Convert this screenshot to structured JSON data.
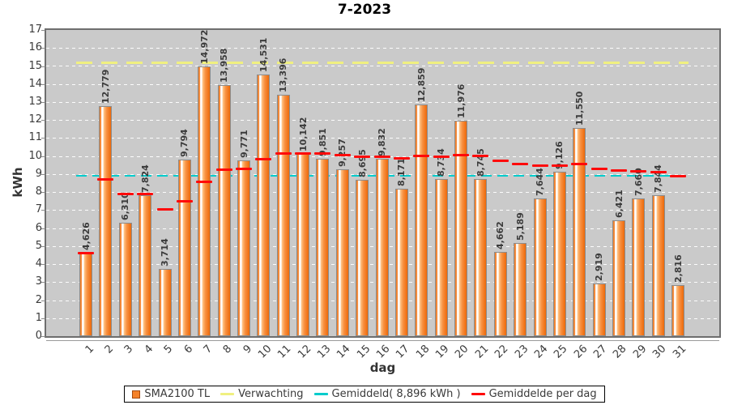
{
  "title": "7-2023",
  "axes": {
    "y_label": "kWh",
    "x_label": "dag",
    "y_ticks": [
      0,
      1,
      2,
      3,
      4,
      5,
      6,
      7,
      8,
      9,
      10,
      11,
      12,
      13,
      14,
      15,
      16,
      17
    ],
    "x_ticks": [
      "1",
      "2",
      "3",
      "4",
      "5",
      "6",
      "7",
      "8",
      "9",
      "10",
      "11",
      "12",
      "13",
      "14",
      "15",
      "16",
      "17",
      "18",
      "19",
      "20",
      "21",
      "22",
      "23",
      "24",
      "25",
      "26",
      "27",
      "28",
      "29",
      "30",
      "31"
    ]
  },
  "legend": [
    {
      "label": "SMA2100 TL",
      "swatch": "bar",
      "color": "#f5822a"
    },
    {
      "label": "Verwachting",
      "swatch": "line",
      "color": "#f0f080"
    },
    {
      "label": "Gemiddeld( 8,896 kWh )",
      "swatch": "line",
      "color": "#00cccc"
    },
    {
      "label": "Gemiddelde per dag",
      "swatch": "line",
      "color": "#ff0a0a"
    }
  ],
  "chart_data": {
    "type": "bar",
    "title": "7-2023",
    "xlabel": "dag",
    "ylabel": "kWh",
    "ylim": [
      0,
      17
    ],
    "grid": true,
    "legend_position": "bottom",
    "categories": [
      1,
      2,
      3,
      4,
      5,
      6,
      7,
      8,
      9,
      10,
      11,
      12,
      13,
      14,
      15,
      16,
      17,
      18,
      19,
      20,
      21,
      22,
      23,
      24,
      25,
      26,
      27,
      28,
      29,
      30,
      31
    ],
    "series": [
      {
        "name": "SMA2100 TL",
        "color": "#f5822a",
        "values": [
          4.626,
          12.779,
          6.31,
          7.824,
          3.714,
          9.794,
          14.972,
          13.958,
          9.771,
          14.531,
          13.396,
          10.142,
          9.851,
          9.257,
          8.695,
          9.832,
          8.171,
          12.859,
          8.734,
          11.976,
          8.745,
          4.662,
          5.189,
          7.644,
          9.126,
          11.55,
          2.919,
          6.421,
          7.66,
          7.844,
          2.816
        ],
        "value_labels": [
          "4,626",
          "12,779",
          "6,310",
          "7,824",
          "3,714",
          "9,794",
          "14,972",
          "13,958",
          "9,771",
          "14,531",
          "13,396",
          "10,142",
          "9,851",
          "9,257",
          "8,695",
          "9,832",
          "8,171",
          "12,859",
          "8,734",
          "11,976",
          "8,745",
          "4,662",
          "5,189",
          "7,644",
          "9,126",
          "11,550",
          "2,919",
          "6,421",
          "7,660",
          "7,844",
          "2,816"
        ]
      }
    ],
    "reference_lines": [
      {
        "name": "Verwachting",
        "value": 15.2,
        "color": "#f0f080",
        "style": "dashed",
        "thickness": 3
      },
      {
        "name": "Gemiddeld",
        "value": 8.896,
        "display": "8,896 kWh",
        "color": "#00cccc",
        "style": "dashed",
        "thickness": 2
      }
    ],
    "running_average": {
      "name": "Gemiddelde per dag",
      "color": "#ff0a0a",
      "values": [
        4.626,
        8.703,
        7.905,
        7.885,
        7.051,
        7.508,
        8.574,
        9.247,
        9.305,
        9.828,
        10.152,
        10.151,
        10.128,
        10.066,
        9.975,
        9.966,
        9.86,
        10.027,
        9.959,
        10.06,
        9.997,
        9.755,
        9.556,
        9.476,
        9.462,
        9.543,
        9.297,
        9.195,
        9.142,
        9.098,
        8.896
      ]
    }
  }
}
